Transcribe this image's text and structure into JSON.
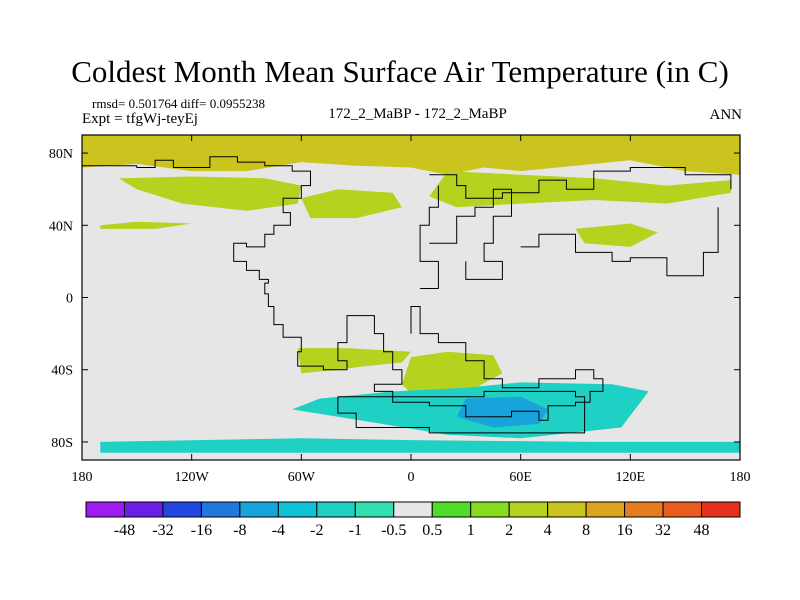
{
  "title": "Coldest Month Mean Surface Air Temperature (in C)",
  "stats": "rmsd= 0.501764  diff= 0.0955238",
  "experiment": "Expt = tfgWj-teyEj",
  "case_label": "172_2_MaBP - 172_2_MaBP",
  "season": "ANN",
  "colors": {
    "land_fill": "#e6e6e6",
    "coastline": "#000000"
  },
  "map": {
    "lon_range": [
      -180,
      180
    ],
    "lat_range": [
      -90,
      90
    ],
    "lon_ticks": [
      {
        "lon": -180,
        "label": "180"
      },
      {
        "lon": -120,
        "label": "120W"
      },
      {
        "lon": -60,
        "label": "60W"
      },
      {
        "lon": 0,
        "label": "0"
      },
      {
        "lon": 60,
        "label": "60E"
      },
      {
        "lon": 120,
        "label": "120E"
      },
      {
        "lon": 180,
        "label": "180"
      }
    ],
    "lat_ticks": [
      {
        "lat": 80,
        "label": "80N"
      },
      {
        "lat": 40,
        "label": "40N"
      },
      {
        "lat": 0,
        "label": "0"
      },
      {
        "lat": -40,
        "label": "40S"
      },
      {
        "lat": -80,
        "label": "80S"
      }
    ],
    "regions": [
      {
        "name": "arctic-band",
        "level": 4,
        "points": [
          [
            -180,
            90
          ],
          [
            180,
            90
          ],
          [
            180,
            68
          ],
          [
            150,
            70
          ],
          [
            120,
            76
          ],
          [
            90,
            73
          ],
          [
            60,
            70
          ],
          [
            40,
            72
          ],
          [
            20,
            68
          ],
          [
            0,
            72
          ],
          [
            -30,
            73
          ],
          [
            -60,
            75
          ],
          [
            -90,
            70
          ],
          [
            -120,
            70
          ],
          [
            -150,
            74
          ],
          [
            -180,
            72
          ]
        ]
      },
      {
        "name": "eurasia-north",
        "level": 3,
        "points": [
          [
            20,
            70
          ],
          [
            60,
            68
          ],
          [
            100,
            66
          ],
          [
            140,
            62
          ],
          [
            175,
            65
          ],
          [
            175,
            58
          ],
          [
            140,
            52
          ],
          [
            100,
            54
          ],
          [
            60,
            52
          ],
          [
            25,
            50
          ],
          [
            10,
            56
          ]
        ]
      },
      {
        "name": "north-america-north",
        "level": 3,
        "points": [
          [
            -160,
            66
          ],
          [
            -120,
            67
          ],
          [
            -80,
            66
          ],
          [
            -60,
            62
          ],
          [
            -62,
            52
          ],
          [
            -90,
            48
          ],
          [
            -125,
            52
          ],
          [
            -150,
            60
          ]
        ]
      },
      {
        "name": "north-atlantic",
        "level": 2,
        "points": [
          [
            -60,
            55
          ],
          [
            -40,
            60
          ],
          [
            -10,
            58
          ],
          [
            -5,
            50
          ],
          [
            -30,
            44
          ],
          [
            -55,
            44
          ]
        ]
      },
      {
        "name": "north-pacific-strip",
        "level": 2,
        "points": [
          [
            -170,
            40
          ],
          [
            -150,
            42
          ],
          [
            -120,
            41
          ],
          [
            -140,
            38
          ],
          [
            -170,
            38
          ]
        ]
      },
      {
        "name": "asia-east",
        "level": 2,
        "points": [
          [
            90,
            38
          ],
          [
            120,
            41
          ],
          [
            135,
            36
          ],
          [
            120,
            28
          ],
          [
            95,
            30
          ]
        ]
      },
      {
        "name": "south-america",
        "level": 2,
        "points": [
          [
            -35,
            -28
          ],
          [
            0,
            -30
          ],
          [
            -5,
            -36
          ],
          [
            -25,
            -38
          ],
          [
            -40,
            -40
          ],
          [
            -60,
            -42
          ],
          [
            -62,
            -28
          ]
        ]
      },
      {
        "name": "africa-south",
        "level": 2,
        "points": [
          [
            0,
            -33
          ],
          [
            20,
            -30
          ],
          [
            45,
            -32
          ],
          [
            50,
            -42
          ],
          [
            30,
            -53
          ],
          [
            5,
            -58
          ],
          [
            -5,
            -48
          ]
        ]
      },
      {
        "name": "southern-ocean",
        "level": -2,
        "points": [
          [
            -50,
            -56
          ],
          [
            -10,
            -52
          ],
          [
            30,
            -50
          ],
          [
            60,
            -47
          ],
          [
            110,
            -48
          ],
          [
            130,
            -52
          ],
          [
            115,
            -72
          ],
          [
            60,
            -78
          ],
          [
            20,
            -76
          ],
          [
            -40,
            -66
          ],
          [
            -65,
            -62
          ]
        ]
      },
      {
        "name": "antarctic-coast",
        "level": -2,
        "points": [
          [
            -170,
            -80
          ],
          [
            -60,
            -78
          ],
          [
            0,
            -79
          ],
          [
            100,
            -80
          ],
          [
            180,
            -80
          ],
          [
            180,
            -86
          ],
          [
            -170,
            -86
          ]
        ]
      },
      {
        "name": "antarctic-cold-core",
        "level": -8,
        "points": [
          [
            30,
            -56
          ],
          [
            60,
            -55
          ],
          [
            75,
            -62
          ],
          [
            70,
            -70
          ],
          [
            45,
            -72
          ],
          [
            25,
            -66
          ]
        ]
      }
    ],
    "coastlines": [
      [
        [
          -180,
          73
        ],
        [
          -160,
          73
        ],
        [
          -150,
          72
        ],
        [
          -140,
          76
        ],
        [
          -130,
          72
        ],
        [
          -110,
          78
        ],
        [
          -95,
          75
        ],
        [
          -80,
          73
        ],
        [
          -65,
          70
        ],
        [
          -55,
          62
        ],
        [
          -60,
          55
        ],
        [
          -70,
          47
        ],
        [
          -66,
          40
        ],
        [
          -75,
          35
        ],
        [
          -80,
          28
        ],
        [
          -90,
          30
        ],
        [
          -97,
          20
        ],
        [
          -90,
          15
        ],
        [
          -83,
          10
        ],
        [
          -78,
          8
        ],
        [
          -80,
          2
        ],
        [
          -78,
          -5
        ],
        [
          -75,
          -15
        ],
        [
          -70,
          -22
        ],
        [
          -60,
          -30
        ],
        [
          -62,
          -38
        ],
        [
          -48,
          -40
        ],
        [
          -35,
          -35
        ],
        [
          -40,
          -25
        ],
        [
          -35,
          -10
        ],
        [
          -20,
          -20
        ],
        [
          -15,
          -30
        ],
        [
          -10,
          -40
        ],
        [
          -5,
          -48
        ],
        [
          -20,
          -52
        ],
        [
          -10,
          -58
        ],
        [
          10,
          -60
        ],
        [
          30,
          -66
        ],
        [
          55,
          -63
        ],
        [
          70,
          -68
        ],
        [
          75,
          -60
        ],
        [
          90,
          -58
        ],
        [
          98,
          -52
        ],
        [
          105,
          -45
        ],
        [
          100,
          -40
        ],
        [
          90,
          -45
        ],
        [
          70,
          -50
        ],
        [
          50,
          -45
        ],
        [
          40,
          -35
        ],
        [
          30,
          -25
        ],
        [
          15,
          -20
        ],
        [
          5,
          -5
        ],
        [
          0,
          -20
        ]
      ],
      [
        [
          10,
          68
        ],
        [
          25,
          62
        ],
        [
          30,
          55
        ],
        [
          50,
          58
        ],
        [
          70,
          65
        ],
        [
          85,
          60
        ],
        [
          100,
          70
        ],
        [
          120,
          72
        ],
        [
          150,
          68
        ],
        [
          175,
          60
        ]
      ],
      [
        [
          5,
          5
        ],
        [
          15,
          20
        ],
        [
          5,
          40
        ],
        [
          10,
          50
        ],
        [
          15,
          62
        ]
      ],
      [
        [
          10,
          30
        ],
        [
          25,
          45
        ],
        [
          35,
          50
        ],
        [
          45,
          60
        ],
        [
          55,
          45
        ],
        [
          45,
          30
        ],
        [
          40,
          20
        ],
        [
          50,
          10
        ],
        [
          40,
          10
        ],
        [
          30,
          20
        ]
      ],
      [
        [
          60,
          28
        ],
        [
          70,
          35
        ],
        [
          90,
          25
        ],
        [
          110,
          20
        ],
        [
          120,
          22
        ],
        [
          140,
          12
        ],
        [
          160,
          25
        ],
        [
          168,
          50
        ]
      ],
      [
        [
          -40,
          -55
        ],
        [
          40,
          -52
        ],
        [
          90,
          -55
        ],
        [
          95,
          -75
        ],
        [
          40,
          -75
        ],
        [
          10,
          -72
        ],
        [
          -30,
          -64
        ],
        [
          -40,
          -55
        ]
      ]
    ]
  },
  "colorbar": {
    "colors": [
      "#9e1cf0",
      "#6a1ee6",
      "#2346e0",
      "#1f78dc",
      "#19a3dc",
      "#10c2d8",
      "#1fd0c4",
      "#30e0b0",
      "#e6e6e6",
      "#50dc28",
      "#88dc1e",
      "#b4d21e",
      "#ccc41e",
      "#dca51e",
      "#e67c1e",
      "#e65d1e",
      "#e6301e"
    ],
    "labels": [
      "-48",
      "-32",
      "-16",
      "-8",
      "-4",
      "-2",
      "-1",
      "-0.5",
      "0.5",
      "1",
      "2",
      "4",
      "8",
      "16",
      "32",
      "48"
    ],
    "bounds": [
      -64,
      -48,
      -32,
      -16,
      -8,
      -4,
      -2,
      -1,
      -0.5,
      0.5,
      1,
      2,
      4,
      8,
      16,
      32,
      48,
      64
    ]
  }
}
